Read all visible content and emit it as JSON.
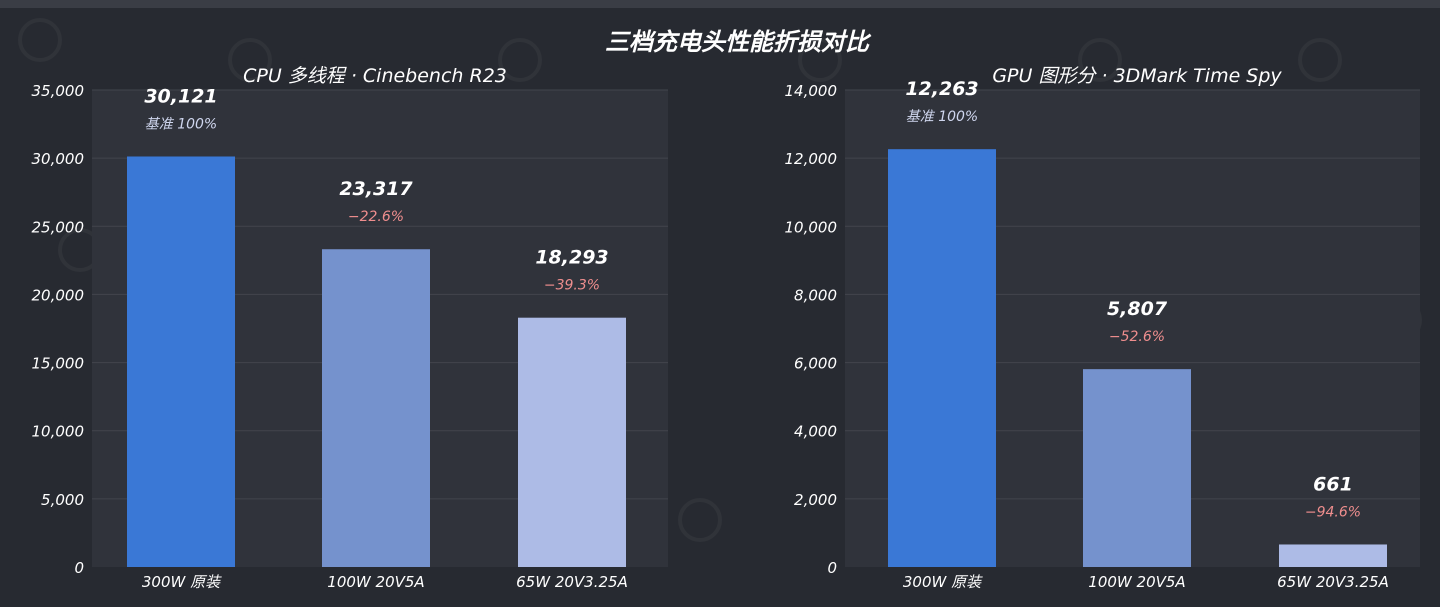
{
  "title": "三档充电头性能折损对比",
  "colors": {
    "background": "#272a31",
    "plot_bg": "#30333b",
    "grid": "#42454d",
    "bar_300w": "#3a78d6",
    "bar_100w": "#7592cd",
    "bar_65w": "#adbbe6",
    "baseline_label": "#cfd6ee",
    "loss_label": "#ef8e8e"
  },
  "chart_data": [
    {
      "type": "bar",
      "title": "CPU 多线程 · Cinebench R23",
      "categories": [
        "300W 原装",
        "100W 20V5A",
        "65W 20V3.25A"
      ],
      "values": [
        30121,
        23317,
        18293
      ],
      "value_labels": [
        "30,121",
        "23,317",
        "18,293"
      ],
      "sub_labels": [
        "基准 100%",
        "−22.6%",
        "−39.3%"
      ],
      "ylim": [
        0,
        35000
      ],
      "yticks": [
        0,
        5000,
        10000,
        15000,
        20000,
        25000,
        30000,
        35000
      ],
      "ytick_labels": [
        "0",
        "5,000",
        "10,000",
        "15,000",
        "20,000",
        "25,000",
        "30,000",
        "35,000"
      ],
      "grid": true
    },
    {
      "type": "bar",
      "title": "GPU 图形分 · 3DMark Time Spy",
      "categories": [
        "300W 原装",
        "100W 20V5A",
        "65W 20V3.25A"
      ],
      "values": [
        12263,
        5807,
        661
      ],
      "value_labels": [
        "12,263",
        "5,807",
        "661"
      ],
      "sub_labels": [
        "基准 100%",
        "−52.6%",
        "−94.6%"
      ],
      "ylim": [
        0,
        14000
      ],
      "yticks": [
        0,
        2000,
        4000,
        6000,
        8000,
        10000,
        12000,
        14000
      ],
      "ytick_labels": [
        "0",
        "2,000",
        "4,000",
        "6,000",
        "8,000",
        "10,000",
        "12,000",
        "14,000"
      ],
      "grid": true
    }
  ]
}
